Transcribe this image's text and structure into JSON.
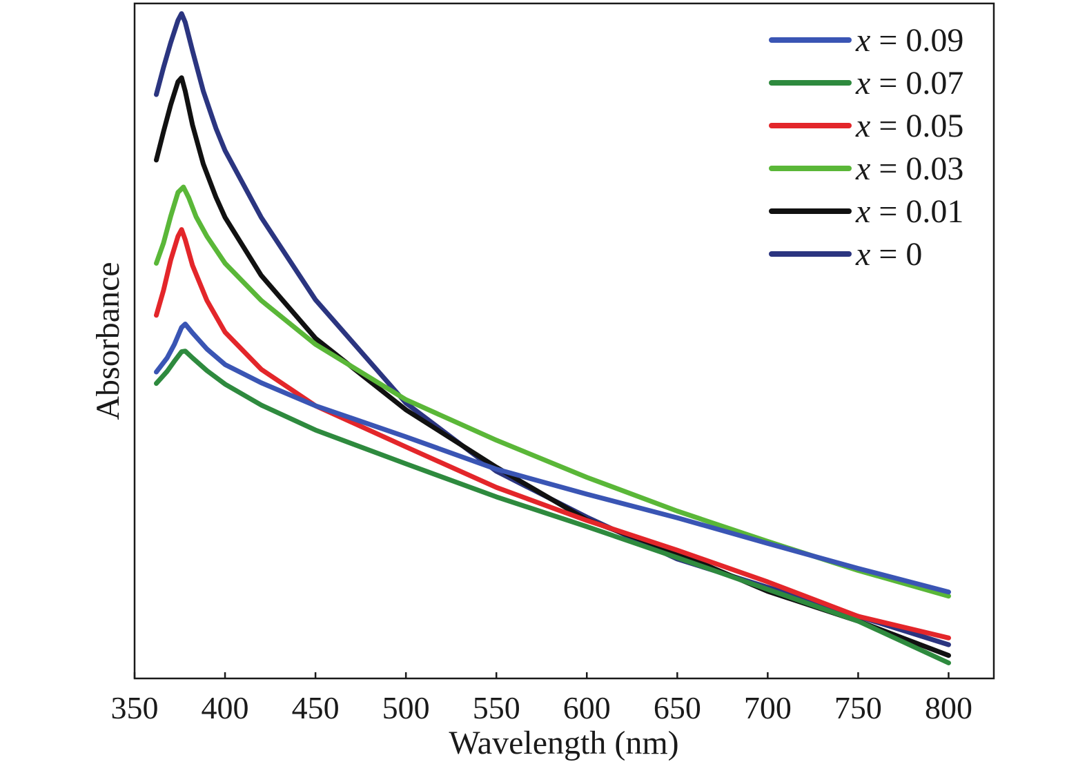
{
  "chart_data": {
    "type": "line",
    "title": "",
    "xlabel": "Wavelength (nm)",
    "ylabel": "Absorbance",
    "xlim": [
      350,
      825
    ],
    "ylim": [
      0,
      1
    ],
    "xticks": [
      350,
      400,
      450,
      500,
      550,
      600,
      650,
      700,
      750,
      800
    ],
    "yticks_shown": false,
    "grid": false,
    "legend_position": "top-right",
    "legend_var": "x",
    "legend_eq": " = ",
    "series": [
      {
        "name": "x = 0.09",
        "x_value": "0.09",
        "color": "#3a55b4",
        "x": [
          362,
          368,
          372,
          376,
          378,
          382,
          390,
          400,
          420,
          450,
          500,
          550,
          600,
          650,
          700,
          750,
          800
        ],
        "y": [
          0.454,
          0.475,
          0.495,
          0.52,
          0.525,
          0.512,
          0.488,
          0.465,
          0.438,
          0.404,
          0.358,
          0.31,
          0.273,
          0.238,
          0.2,
          0.163,
          0.128
        ]
      },
      {
        "name": "x = 0.07",
        "x_value": "0.07",
        "color": "#2e8a3e",
        "x": [
          362,
          368,
          372,
          376,
          378,
          382,
          390,
          400,
          420,
          450,
          500,
          550,
          600,
          650,
          700,
          750,
          800
        ],
        "y": [
          0.437,
          0.455,
          0.47,
          0.484,
          0.485,
          0.475,
          0.456,
          0.436,
          0.405,
          0.368,
          0.318,
          0.269,
          0.225,
          0.179,
          0.132,
          0.085,
          0.023
        ]
      },
      {
        "name": "x = 0.05",
        "x_value": "0.05",
        "color": "#e3262a",
        "x": [
          362,
          366,
          370,
          374,
          376,
          378,
          382,
          390,
          400,
          420,
          450,
          500,
          550,
          600,
          650,
          700,
          750,
          800
        ],
        "y": [
          0.538,
          0.575,
          0.62,
          0.655,
          0.665,
          0.65,
          0.612,
          0.56,
          0.513,
          0.458,
          0.404,
          0.343,
          0.283,
          0.234,
          0.19,
          0.143,
          0.092,
          0.06
        ]
      },
      {
        "name": "x = 0.03",
        "x_value": "0.03",
        "color": "#5ab738",
        "x": [
          362,
          366,
          370,
          374,
          377,
          380,
          384,
          390,
          400,
          420,
          450,
          500,
          550,
          600,
          650,
          700,
          750,
          800
        ],
        "y": [
          0.615,
          0.645,
          0.685,
          0.72,
          0.728,
          0.712,
          0.684,
          0.655,
          0.615,
          0.56,
          0.495,
          0.413,
          0.353,
          0.298,
          0.248,
          0.203,
          0.16,
          0.122
        ]
      },
      {
        "name": "x = 0.01",
        "x_value": "0.01",
        "color": "#111111",
        "x": [
          362,
          366,
          370,
          374,
          376,
          378,
          382,
          388,
          395,
          400,
          420,
          450,
          500,
          550,
          600,
          650,
          700,
          750,
          800
        ],
        "y": [
          0.768,
          0.81,
          0.85,
          0.884,
          0.89,
          0.87,
          0.82,
          0.762,
          0.713,
          0.683,
          0.597,
          0.504,
          0.398,
          0.313,
          0.235,
          0.186,
          0.129,
          0.085,
          0.034
        ]
      },
      {
        "name": "x = 0",
        "x_value": "0",
        "color": "#2b3580",
        "x": [
          362,
          366,
          370,
          374,
          376,
          378,
          382,
          388,
          395,
          400,
          420,
          450,
          500,
          550,
          600,
          650,
          700,
          750,
          800
        ],
        "y": [
          0.865,
          0.905,
          0.942,
          0.975,
          0.985,
          0.972,
          0.93,
          0.87,
          0.815,
          0.782,
          0.683,
          0.561,
          0.408,
          0.307,
          0.239,
          0.177,
          0.135,
          0.092,
          0.05
        ]
      }
    ]
  }
}
